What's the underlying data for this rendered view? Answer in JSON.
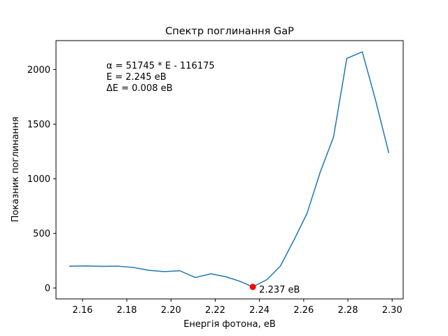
{
  "chart_data": {
    "type": "line",
    "title": "Спектр поглинання GaP",
    "xlabel": "Енергія фотона, eB",
    "ylabel": "Показник поглинання",
    "xlim": [
      2.148,
      2.305
    ],
    "ylim": [
      -100,
      2265
    ],
    "xticks": [
      2.16,
      2.18,
      2.2,
      2.22,
      2.24,
      2.26,
      2.28,
      2.3
    ],
    "xtick_labels": [
      "2.16",
      "2.18",
      "2.20",
      "2.22",
      "2.24",
      "2.26",
      "2.28",
      "2.30"
    ],
    "yticks": [
      0,
      500,
      1000,
      1500,
      2000
    ],
    "ytick_labels": [
      "0",
      "500",
      "1000",
      "1500",
      "2000"
    ],
    "grid": false,
    "series": [
      {
        "color": "#1f77b4",
        "x": [
          2.154,
          2.162,
          2.169,
          2.176,
          2.183,
          2.19,
          2.197,
          2.204,
          2.211,
          2.218,
          2.225,
          2.231,
          2.237,
          2.2435,
          2.2495,
          2.2555,
          2.2615,
          2.2675,
          2.2735,
          2.2795,
          2.2865,
          2.2925,
          2.2985
        ],
        "y": [
          200,
          202,
          198,
          200,
          188,
          162,
          150,
          158,
          96,
          130,
          102,
          62,
          10,
          78,
          202,
          435,
          682,
          1062,
          1382,
          2102,
          2162,
          1720,
          1235
        ]
      }
    ],
    "marker": {
      "x": 2.237,
      "y": 10,
      "color": "#ff0000",
      "label": "2.237 eB"
    },
    "annotation_lines": [
      "α = 51745 * E - 116175",
      "E = 2.245 eB",
      "ΔE = 0.008 eB"
    ]
  }
}
